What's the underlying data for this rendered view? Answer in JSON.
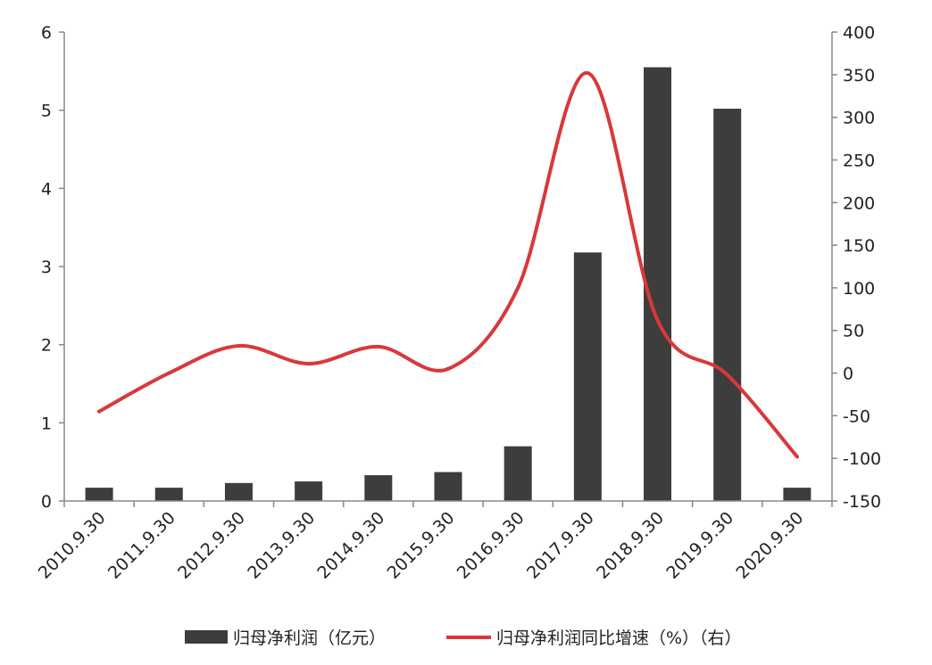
{
  "chart_data": {
    "type": "bar+line",
    "categories": [
      "2010.9.30",
      "2011.9.30",
      "2012.9.30",
      "2013.9.30",
      "2014.9.30",
      "2015.9.30",
      "2016.9.30",
      "2017.9.30",
      "2018.9.30",
      "2019.9.30",
      "2020.9.30"
    ],
    "series": [
      {
        "name": "归母净利润（亿元）",
        "type": "bar",
        "axis": "left",
        "color": "#3d3d3d",
        "values": [
          0.17,
          0.17,
          0.23,
          0.25,
          0.33,
          0.37,
          0.7,
          3.18,
          5.55,
          5.02,
          0.17
        ]
      },
      {
        "name": "归母净利润同比增速（%）（右）",
        "type": "line",
        "axis": "right",
        "color": "#d8383a",
        "values": [
          -45,
          0,
          32,
          11,
          31,
          5,
          100,
          352,
          62,
          -2,
          -98
        ]
      }
    ],
    "left_axis": {
      "ylim": [
        0,
        6
      ],
      "ticks": [
        0,
        1,
        2,
        3,
        4,
        5,
        6
      ],
      "tick_labels": [
        "0",
        "1",
        "2",
        "3",
        "4",
        "5",
        "6"
      ]
    },
    "right_axis": {
      "ylim": [
        -150,
        400
      ],
      "ticks": [
        -150,
        -100,
        -50,
        0,
        50,
        100,
        150,
        200,
        250,
        300,
        350,
        400
      ],
      "tick_labels": [
        "-150",
        "-100",
        "-50",
        "0",
        "50",
        "100",
        "150",
        "200",
        "250",
        "300",
        "350",
        "400"
      ]
    },
    "title": "",
    "xlabel": "",
    "ylabel": "",
    "grid": false,
    "legend_position": "bottom-center"
  }
}
